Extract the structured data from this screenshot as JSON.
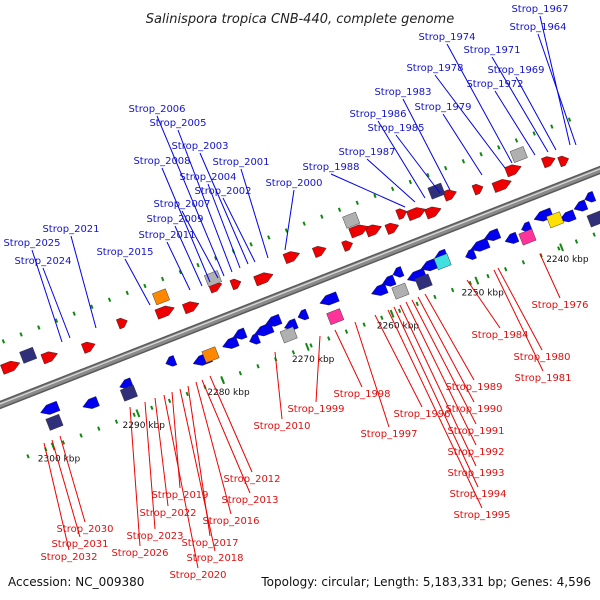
{
  "title": "Salinispora tropica CNB-440, complete genome",
  "footer": {
    "accession": "Accession: NC_009380",
    "summary": "Topology: circular; Length: 5,183,331 bp; Genes: 4,596"
  },
  "colors": {
    "forward_gene": "#0000ee",
    "reverse_gene": "#ee0000",
    "forward_label": "#1515c8",
    "reverse_label": "#dd1111",
    "backbone": "#8a8a8a",
    "tick": "#118811"
  },
  "ticks": [
    "2240 kbp",
    "2250 kbp",
    "2260 kbp",
    "2270 kbp",
    "2280 kbp",
    "2290 kbp",
    "2300 kbp"
  ],
  "forward_genes": [
    "Strop_1964",
    "Strop_1967",
    "Strop_1969",
    "Strop_1971",
    "Strop_1972",
    "Strop_1974",
    "Strop_1978",
    "Strop_1979",
    "Strop_1983",
    "Strop_1985",
    "Strop_1986",
    "Strop_1987",
    "Strop_1988",
    "Strop_2000",
    "Strop_2001",
    "Strop_2002",
    "Strop_2003",
    "Strop_2004",
    "Strop_2005",
    "Strop_2006",
    "Strop_2007",
    "Strop_2008",
    "Strop_2009",
    "Strop_2011",
    "Strop_2015",
    "Strop_2021",
    "Strop_2024",
    "Strop_2025"
  ],
  "reverse_genes": [
    "Strop_1976",
    "Strop_1980",
    "Strop_1981",
    "Strop_1984",
    "Strop_1989",
    "Strop_1990",
    "Strop_1991",
    "Strop_1992",
    "Strop_1993",
    "Strop_1994",
    "Strop_1995",
    "Strop_1996",
    "Strop_1997",
    "Strop_1998",
    "Strop_1999",
    "Strop_2010",
    "Strop_2012",
    "Strop_2013",
    "Strop_2016",
    "Strop_2017",
    "Strop_2018",
    "Strop_2019",
    "Strop_2020",
    "Strop_2022",
    "Strop_2023",
    "Strop_2026",
    "Strop_2030",
    "Strop_2031",
    "Strop_2032"
  ]
}
